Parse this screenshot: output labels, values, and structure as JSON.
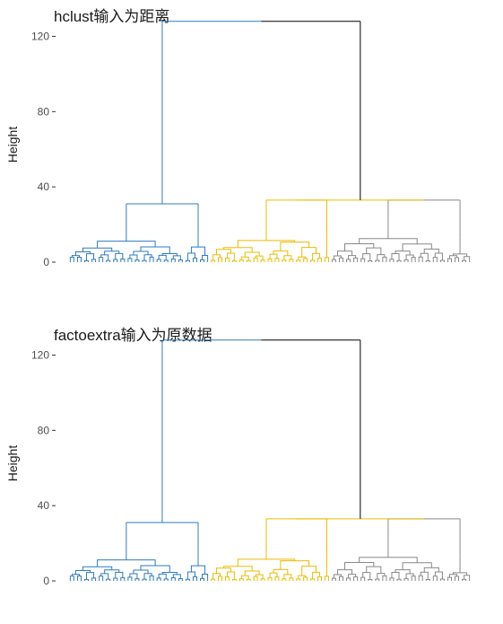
{
  "chart_data": [
    {
      "type": "dendrogram",
      "title": "hclust输入为距离",
      "ylabel": "Height",
      "xlabel": "",
      "ylim": [
        0,
        125
      ],
      "yticks": [
        0,
        40,
        80,
        120
      ],
      "grid": false,
      "clusters": [
        {
          "color": "#2E7BBF",
          "merge_height": 31,
          "leaf_share": 0.35
        },
        {
          "color": "#EDBB00",
          "merge_height": 33,
          "leaf_share": 0.3
        },
        {
          "color": "#888888",
          "merge_height": 33,
          "leaf_share": 0.35
        }
      ],
      "root": {
        "color": "#000000",
        "height": 128,
        "left_color": "#2E7BBF"
      },
      "sub_merges": [
        20,
        12,
        13
      ]
    },
    {
      "type": "dendrogram",
      "title": "factoextra输入为原数据",
      "ylabel": "Height",
      "xlabel": "",
      "ylim": [
        0,
        125
      ],
      "yticks": [
        0,
        40,
        80,
        120
      ],
      "grid": false,
      "clusters": [
        {
          "color": "#2E7BBF",
          "merge_height": 31,
          "leaf_share": 0.35
        },
        {
          "color": "#EDBB00",
          "merge_height": 33,
          "leaf_share": 0.3
        },
        {
          "color": "#888888",
          "merge_height": 33,
          "leaf_share": 0.35
        }
      ],
      "root": {
        "color": "#000000",
        "height": 128,
        "left_color": "#2E7BBF"
      },
      "sub_merges": [
        20,
        12,
        13
      ]
    }
  ]
}
